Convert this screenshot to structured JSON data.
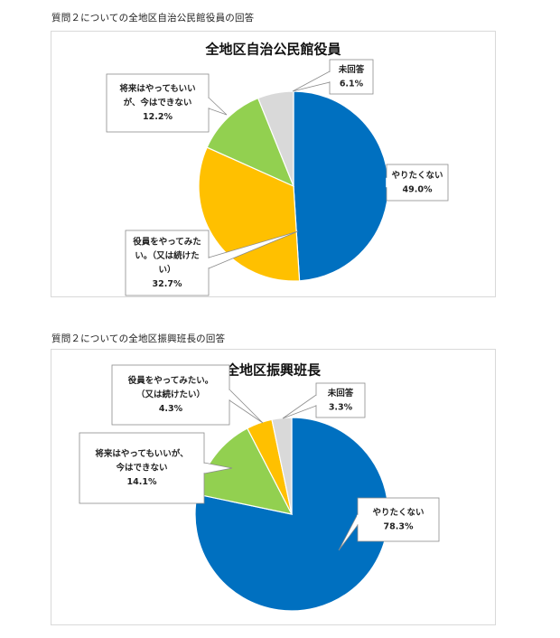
{
  "sections": [
    {
      "caption": "質問２についての全地区自治公民館役員の回答",
      "chart": {
        "title": "全地区自治公民館役員",
        "labels": [
          {
            "lines": [
              "やりたくない"
            ],
            "value": "49.0%"
          },
          {
            "lines": [
              "役員をやってみた",
              "い。（又は続けた",
              "い）"
            ],
            "value": "32.7%"
          },
          {
            "lines": [
              "将来はやってもいい",
              "が、今はできない"
            ],
            "value": "12.2%"
          },
          {
            "lines": [
              "未回答"
            ],
            "value": "6.1%"
          }
        ]
      }
    },
    {
      "caption": "質問２についての全地区振興班長の回答",
      "chart": {
        "title": "全地区振興班長",
        "labels": [
          {
            "lines": [
              "やりたくない"
            ],
            "value": "78.3%"
          },
          {
            "lines": [
              "将来はやってもいいが、",
              "今はできない"
            ],
            "value": "14.1%"
          },
          {
            "lines": [
              "役員をやってみたい。",
              "（又は続けたい）"
            ],
            "value": "4.3%"
          },
          {
            "lines": [
              "未回答"
            ],
            "value": "3.3%"
          }
        ]
      }
    }
  ],
  "chart_data": [
    {
      "type": "pie",
      "title": "全地区自治公民館役員",
      "categories": [
        "やりたくない",
        "役員をやってみたい。（又は続けたい）",
        "将来はやってもいいが、今はできない",
        "未回答"
      ],
      "values": [
        49.0,
        32.7,
        12.2,
        6.1
      ],
      "colors": [
        "#0070c0",
        "#ffc000",
        "#92d050",
        "#d9d9d9"
      ],
      "start_angle_deg": 0,
      "direction": "clockwise",
      "legend": "none",
      "data_labels": "callouts"
    },
    {
      "type": "pie",
      "title": "全地区振興班長",
      "categories": [
        "やりたくない",
        "将来はやってもいいが、今はできない",
        "役員をやってみたい。（又は続けたい）",
        "未回答"
      ],
      "values": [
        78.3,
        14.1,
        4.3,
        3.3
      ],
      "colors": [
        "#0070c0",
        "#92d050",
        "#ffc000",
        "#d9d9d9"
      ],
      "start_angle_deg": 0,
      "direction": "clockwise",
      "legend": "none",
      "data_labels": "callouts"
    }
  ]
}
